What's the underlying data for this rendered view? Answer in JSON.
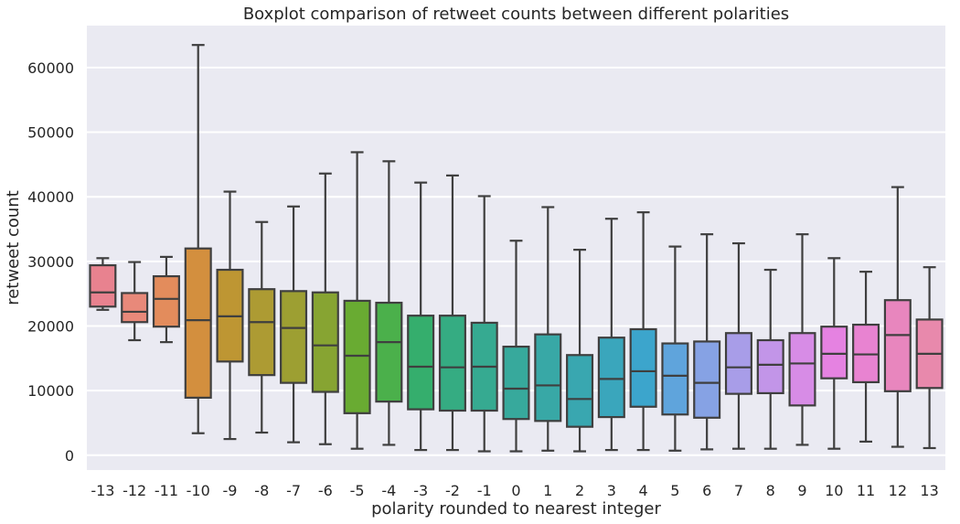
{
  "chart_data": {
    "type": "boxplot",
    "title": "Boxplot comparison of retweet counts between different polarities",
    "xlabel": "polarity rounded to nearest integer",
    "ylabel": "retweet count",
    "ylim": [
      -2300,
      66500
    ],
    "yticks": [
      0,
      10000,
      20000,
      30000,
      40000,
      50000,
      60000
    ],
    "grid": true,
    "categories": [
      "-13",
      "-12",
      "-11",
      "-10",
      "-9",
      "-8",
      "-7",
      "-6",
      "-5",
      "-4",
      "-3",
      "-2",
      "-1",
      "0",
      "1",
      "2",
      "3",
      "4",
      "5",
      "6",
      "7",
      "8",
      "9",
      "10",
      "11",
      "12",
      "13"
    ],
    "boxes": [
      {
        "category": "-13",
        "whislo": 22500,
        "q1": 23000,
        "med": 25200,
        "q3": 29400,
        "whishi": 30500,
        "color": "#e8828f"
      },
      {
        "category": "-12",
        "whislo": 17800,
        "q1": 20600,
        "med": 22200,
        "q3": 25100,
        "whishi": 29900,
        "color": "#e8897a"
      },
      {
        "category": "-11",
        "whislo": 17500,
        "q1": 19900,
        "med": 24200,
        "q3": 27700,
        "whishi": 30700,
        "color": "#e38c5c"
      },
      {
        "category": "-10",
        "whislo": 3400,
        "q1": 8900,
        "med": 20900,
        "q3": 32000,
        "whishi": 63500,
        "color": "#d38f3e"
      },
      {
        "category": "-9",
        "whislo": 2500,
        "q1": 14500,
        "med": 21500,
        "q3": 28700,
        "whishi": 40800,
        "color": "#be9633"
      },
      {
        "category": "-8",
        "whislo": 3500,
        "q1": 12400,
        "med": 20600,
        "q3": 25700,
        "whishi": 36100,
        "color": "#ad9b33"
      },
      {
        "category": "-7",
        "whislo": 2000,
        "q1": 11200,
        "med": 19700,
        "q3": 25400,
        "whishi": 38500,
        "color": "#9d9f32"
      },
      {
        "category": "-6",
        "whislo": 1700,
        "q1": 9800,
        "med": 17000,
        "q3": 25200,
        "whishi": 43600,
        "color": "#87a432"
      },
      {
        "category": "-5",
        "whislo": 1000,
        "q1": 6500,
        "med": 15400,
        "q3": 23900,
        "whishi": 46900,
        "color": "#69ab32"
      },
      {
        "category": "-4",
        "whislo": 1600,
        "q1": 8300,
        "med": 17500,
        "q3": 23600,
        "whishi": 45500,
        "color": "#4bb04b"
      },
      {
        "category": "-3",
        "whislo": 800,
        "q1": 7100,
        "med": 13700,
        "q3": 21600,
        "whishi": 42200,
        "color": "#35ae6d"
      },
      {
        "category": "-2",
        "whislo": 800,
        "q1": 6900,
        "med": 13600,
        "q3": 21600,
        "whishi": 43300,
        "color": "#35ac82"
      },
      {
        "category": "-1",
        "whislo": 600,
        "q1": 6900,
        "med": 13700,
        "q3": 20500,
        "whishi": 40100,
        "color": "#36aa91"
      },
      {
        "category": "0",
        "whislo": 600,
        "q1": 5600,
        "med": 10300,
        "q3": 16800,
        "whishi": 33200,
        "color": "#37a99c"
      },
      {
        "category": "1",
        "whislo": 700,
        "q1": 5300,
        "med": 10800,
        "q3": 18700,
        "whishi": 38400,
        "color": "#38a8a6"
      },
      {
        "category": "2",
        "whislo": 600,
        "q1": 4400,
        "med": 8700,
        "q3": 15500,
        "whishi": 31800,
        "color": "#39a7b0"
      },
      {
        "category": "3",
        "whislo": 800,
        "q1": 5900,
        "med": 11800,
        "q3": 18200,
        "whishi": 36600,
        "color": "#3aa6bc"
      },
      {
        "category": "4",
        "whislo": 800,
        "q1": 7500,
        "med": 13000,
        "q3": 19500,
        "whishi": 37600,
        "color": "#3ca5cc"
      },
      {
        "category": "5",
        "whislo": 700,
        "q1": 6300,
        "med": 12300,
        "q3": 17300,
        "whishi": 32300,
        "color": "#5fa4dc"
      },
      {
        "category": "6",
        "whislo": 900,
        "q1": 5800,
        "med": 11200,
        "q3": 17600,
        "whishi": 34200,
        "color": "#86a2e4"
      },
      {
        "category": "7",
        "whislo": 1000,
        "q1": 9500,
        "med": 13600,
        "q3": 18900,
        "whishi": 32800,
        "color": "#a89de8"
      },
      {
        "category": "8",
        "whislo": 1000,
        "q1": 9600,
        "med": 14000,
        "q3": 17800,
        "whishi": 28700,
        "color": "#c295e8"
      },
      {
        "category": "9",
        "whislo": 1600,
        "q1": 7700,
        "med": 14200,
        "q3": 18900,
        "whishi": 34200,
        "color": "#d78ce6"
      },
      {
        "category": "10",
        "whislo": 1000,
        "q1": 11900,
        "med": 15700,
        "q3": 19900,
        "whishi": 30500,
        "color": "#e582e1"
      },
      {
        "category": "11",
        "whislo": 2100,
        "q1": 11300,
        "med": 15600,
        "q3": 20200,
        "whishi": 28400,
        "color": "#e883d1"
      },
      {
        "category": "12",
        "whislo": 1300,
        "q1": 9900,
        "med": 18600,
        "q3": 24000,
        "whishi": 41500,
        "color": "#e886be"
      },
      {
        "category": "13",
        "whislo": 1100,
        "q1": 10400,
        "med": 15700,
        "q3": 21000,
        "whishi": 29100,
        "color": "#e889ac"
      }
    ],
    "style": {
      "background": "#eaeaf2",
      "gridline": "#ffffff",
      "box_edge": "#3f3f3f"
    }
  }
}
